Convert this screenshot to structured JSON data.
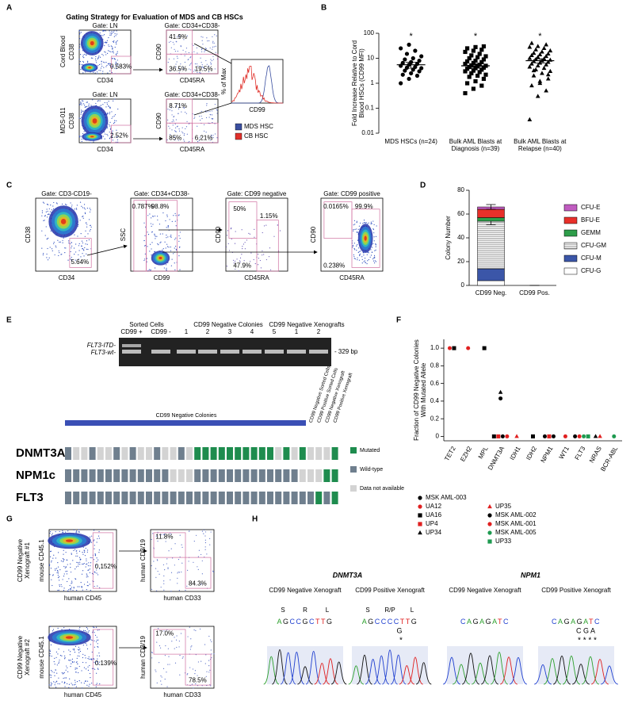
{
  "panel_labels": [
    "A",
    "B",
    "C",
    "D",
    "E",
    "F",
    "G",
    "H"
  ],
  "panel_a": {
    "title": "Gating Strategy for Evaluation of MDS and CB HSCs",
    "row_labels": [
      "Cord Blood",
      "MDS-011"
    ],
    "plots": [
      {
        "gate": "Gate: LN",
        "ylabel": "CD38",
        "xlabel": "CD34",
        "percents": [
          "0.583%"
        ]
      },
      {
        "gate": "Gate: CD34+CD38-",
        "ylabel": "CD90",
        "xlabel": "CD45RA",
        "percents": [
          "41.9%",
          "36.5%",
          "19.5%"
        ]
      },
      {
        "gate": "Gate: LN",
        "ylabel": "CD38",
        "xlabel": "CD34",
        "percents": [
          "2.52%"
        ]
      },
      {
        "gate": "Gate: CD34+CD38-",
        "ylabel": "CD90",
        "xlabel": "CD45RA",
        "percents": [
          "8.71%",
          "85%",
          "6.21%"
        ]
      }
    ],
    "histogram": {
      "ylabel": "% of Max",
      "xlabel": "CD99"
    },
    "legend": [
      {
        "name": "MDS HSC",
        "color": "#3a4fa0"
      },
      {
        "name": "CB HSC",
        "color": "#e0302a"
      }
    ]
  },
  "panel_c": {
    "plots": [
      {
        "gate": "Gate: CD3-CD19-",
        "ylabel": "CD38",
        "xlabel": "CD34",
        "percents": [
          "5.64%"
        ]
      },
      {
        "gate": "Gate: CD34+CD38-",
        "ylabel": "SSC",
        "xlabel": "CD99",
        "percents": [
          "0.787%",
          "98.8%"
        ]
      },
      {
        "gate": "Gate: CD99 negative",
        "ylabel": "CD90",
        "xlabel": "CD45RA",
        "percents": [
          "50%",
          "1.15%",
          "47.9%"
        ]
      },
      {
        "gate": "Gate: CD99 positive",
        "ylabel": "CD90",
        "xlabel": "CD45RA",
        "percents": [
          "0.0165%",
          "99.9%",
          "0.238%"
        ]
      }
    ]
  },
  "panel_e": {
    "gel": {
      "groups": [
        "Sorted Cells",
        "CD99 Negative Colonies",
        "CD99 Negative Xenografts"
      ],
      "lanes": [
        "CD99 +",
        "CD99 -",
        "1",
        "2",
        "3",
        "4",
        "5",
        "1",
        "2"
      ],
      "band_labels": [
        "FLT3-ITD-",
        "FLT3-wt-"
      ],
      "size": "- 329 bp"
    },
    "grid": {
      "bar_label": "CD99 Negative Colonies",
      "column_labels": [
        "CD99 Negative Sorted Cells",
        "CD99 Positive Sorted Cells",
        "CD99 Negative Xenograft",
        "CD99 Positive Xenograft"
      ],
      "rows": [
        {
          "gene": "DNMT3A",
          "status": [
            1,
            2,
            2,
            1,
            2,
            2,
            1,
            2,
            1,
            2,
            2,
            1,
            2,
            2,
            1,
            2,
            0,
            0,
            0,
            0,
            0,
            0,
            0,
            0,
            0,
            0,
            2,
            0,
            2,
            0,
            2,
            2,
            2,
            0
          ]
        },
        {
          "gene": "NPM1c",
          "status": [
            1,
            1,
            1,
            1,
            1,
            1,
            1,
            1,
            1,
            1,
            1,
            1,
            1,
            2,
            2,
            2,
            1,
            1,
            1,
            1,
            1,
            1,
            1,
            1,
            1,
            1,
            1,
            1,
            1,
            2,
            2,
            2,
            0,
            0
          ]
        },
        {
          "gene": "FLT3",
          "status": [
            1,
            1,
            1,
            1,
            1,
            1,
            1,
            1,
            1,
            1,
            1,
            1,
            1,
            1,
            1,
            1,
            1,
            1,
            1,
            1,
            1,
            1,
            1,
            1,
            1,
            1,
            1,
            1,
            1,
            1,
            1,
            0,
            1,
            0
          ]
        }
      ],
      "legend": [
        {
          "name": "Mutated",
          "color": "#1e8c4e"
        },
        {
          "name": "Wild-type",
          "color": "#6f7f8e"
        },
        {
          "name": "Data not available",
          "color": "#d3d3d3"
        }
      ]
    }
  },
  "panel_g": {
    "row_labels": [
      "CD99 Negative Xenograft #1",
      "CD99 Negative Xenograft #2"
    ],
    "plots": [
      {
        "ylabel": "mouse CD45.1",
        "xlabel": "human CD45",
        "percents": [
          "0.152%"
        ]
      },
      {
        "ylabel": "human CD3/19",
        "xlabel": "human CD33",
        "percents": [
          "11.8%",
          "84.3%"
        ]
      },
      {
        "ylabel": "mouse CD45.1",
        "xlabel": "human CD45",
        "percents": [
          "0.139%"
        ]
      },
      {
        "ylabel": "human CD3/19",
        "xlabel": "human CD33",
        "percents": [
          "17.0%",
          "78.5%"
        ]
      }
    ]
  },
  "panel_h": {
    "genes": [
      {
        "name": "DNMT3A",
        "samples": [
          {
            "title": "CD99 Negative Xenograft",
            "aa": [
              "S",
              "R",
              "L"
            ],
            "seq": "AGCCGCTTG"
          },
          {
            "title": "CD99 Positive Xenograft",
            "aa": [
              "S",
              "R/P",
              "L"
            ],
            "seq": "AGCCCCTTG",
            "alt": "G",
            "stars": "*"
          }
        ]
      },
      {
        "name": "NPM1",
        "samples": [
          {
            "title": "CD99 Negative Xenograft",
            "seq": "CAGAGATC"
          },
          {
            "title": "CD99 Positive Xenograft",
            "seq": "CAGAGATC",
            "alt": "C G A",
            "stars": "* * * *"
          }
        ]
      }
    ]
  },
  "chart_data": [
    {
      "type": "strip",
      "ylabel": "Fold Increase Relative to Cord Blood HSCs (CD99 MFI)",
      "categories": [
        "MDS HSCs (n=24)",
        "Bulk AML Blasts at Diagnosis (n=39)",
        "Bulk AML Blasts at Relapse (n=40)"
      ],
      "markers": [
        "circle",
        "square",
        "triangle"
      ],
      "color": "#000000",
      "values": [
        [
          1.0,
          1.5,
          2.0,
          2.2,
          2.5,
          3.0,
          3.2,
          3.5,
          4.0,
          4.2,
          4.5,
          5.0,
          5.5,
          6.0,
          6.5,
          7.0,
          8.0,
          9.0,
          10,
          12,
          15,
          20,
          25,
          35
        ],
        [
          0.4,
          0.6,
          0.8,
          1.0,
          1.2,
          1.5,
          1.8,
          2.0,
          2.2,
          2.5,
          2.8,
          3.0,
          3.2,
          3.5,
          3.8,
          4.0,
          4.2,
          4.5,
          4.8,
          5.0,
          5.2,
          5.5,
          6.0,
          6.5,
          7.0,
          7.5,
          8.0,
          9.0,
          10,
          11,
          12,
          13,
          15,
          18,
          20,
          22,
          25,
          28,
          30
        ],
        [
          0.035,
          0.3,
          0.5,
          0.8,
          1.0,
          1.5,
          2.0,
          2.5,
          3.0,
          3.5,
          4.0,
          4.5,
          5.0,
          5.5,
          6.0,
          6.5,
          7.0,
          7.5,
          8.0,
          8.5,
          9.0,
          9.5,
          10,
          11,
          12,
          13,
          14,
          15,
          16,
          18,
          20,
          22,
          25,
          28,
          30,
          35,
          40,
          1.2,
          2.2,
          3.2
        ]
      ],
      "means": [
        5.5,
        5.0,
        8.0
      ],
      "errors": [
        1.5,
        1.0,
        1.5
      ],
      "annotations": [
        "*",
        "*",
        "*"
      ],
      "ylim": [
        0.01,
        100
      ],
      "yticks": [
        0.01,
        0.1,
        1,
        10,
        100
      ],
      "log_y": true
    },
    {
      "type": "stacked_bar",
      "ylabel": "Colony Number",
      "categories": [
        "CD99 Neg.",
        "CD99 Pos."
      ],
      "series": [
        {
          "name": "CFU-G",
          "color": "#ffffff",
          "values": [
            4,
            0
          ]
        },
        {
          "name": "CFU-M",
          "color": "#3b56a8",
          "values": [
            10,
            0
          ]
        },
        {
          "name": "CFU-GM",
          "color": "#a8a8a8",
          "hatch": true,
          "values": [
            40,
            0
          ],
          "errors": [
            3,
            0
          ]
        },
        {
          "name": "GEMM",
          "color": "#2e9e4a",
          "values": [
            3,
            0
          ]
        },
        {
          "name": "BFU-E",
          "color": "#e8302a",
          "values": [
            7,
            0
          ]
        },
        {
          "name": "CFU-E",
          "color": "#c05cc0",
          "values": [
            2,
            0
          ],
          "errors": [
            2,
            0
          ]
        }
      ],
      "ylim": [
        0,
        80
      ],
      "yticks": [
        0,
        20,
        40,
        60,
        80
      ]
    },
    {
      "type": "dot",
      "ylabel": "Fraction of CD99 Negative Colonies With Mutated Allele",
      "categories": [
        "TET2",
        "EZH2",
        "MPL",
        "DNMT3A",
        "IDH1",
        "IDH2",
        "NPM1",
        "WT1",
        "FLT3",
        "NRAS",
        "BCR-ABL"
      ],
      "series": [
        {
          "name": "MSK AML-003",
          "color": "#000000",
          "marker": "circle",
          "values": [
            null,
            null,
            null,
            0.43,
            null,
            null,
            0,
            null,
            0,
            null,
            null
          ]
        },
        {
          "name": "UA12",
          "color": "#e02020",
          "marker": "circle",
          "values": [
            1,
            1,
            null,
            null,
            null,
            null,
            null,
            null,
            null,
            null,
            null
          ]
        },
        {
          "name": "UA16",
          "color": "#000000",
          "marker": "square",
          "values": [
            1,
            null,
            1,
            0,
            null,
            0,
            null,
            null,
            null,
            null,
            null
          ]
        },
        {
          "name": "UP4",
          "color": "#e02020",
          "marker": "square",
          "values": [
            null,
            null,
            null,
            0,
            null,
            null,
            0,
            null,
            null,
            null,
            null
          ]
        },
        {
          "name": "UP34",
          "color": "#000000",
          "marker": "triangle",
          "values": [
            null,
            null,
            null,
            0.5,
            null,
            null,
            null,
            null,
            null,
            0,
            null
          ]
        },
        {
          "name": "UP35",
          "color": "#e02020",
          "marker": "triangle",
          "values": [
            null,
            null,
            null,
            null,
            0,
            null,
            null,
            null,
            null,
            0,
            null
          ]
        },
        {
          "name": "MSK AML-002",
          "color": "#000000",
          "marker": "circle",
          "values": [
            null,
            null,
            null,
            0,
            null,
            null,
            0,
            null,
            null,
            null,
            null
          ]
        },
        {
          "name": "MSK AML-001",
          "color": "#e02020",
          "marker": "circle",
          "values": [
            null,
            null,
            null,
            0,
            null,
            null,
            null,
            0,
            0,
            null,
            null
          ]
        },
        {
          "name": "MSK AML-005",
          "color": "#1e9a50",
          "marker": "circle",
          "values": [
            null,
            null,
            null,
            null,
            null,
            null,
            null,
            null,
            0,
            null,
            0
          ]
        },
        {
          "name": "UP33",
          "color": "#1e9a50",
          "marker": "square",
          "values": [
            null,
            null,
            null,
            null,
            null,
            null,
            null,
            null,
            0,
            null,
            null
          ]
        }
      ],
      "ylim": [
        -0.05,
        1.1
      ],
      "yticks": [
        0,
        0.2,
        0.4,
        0.6,
        0.8,
        {
          "value": 1,
          "label": "1.0"
        }
      ]
    }
  ]
}
